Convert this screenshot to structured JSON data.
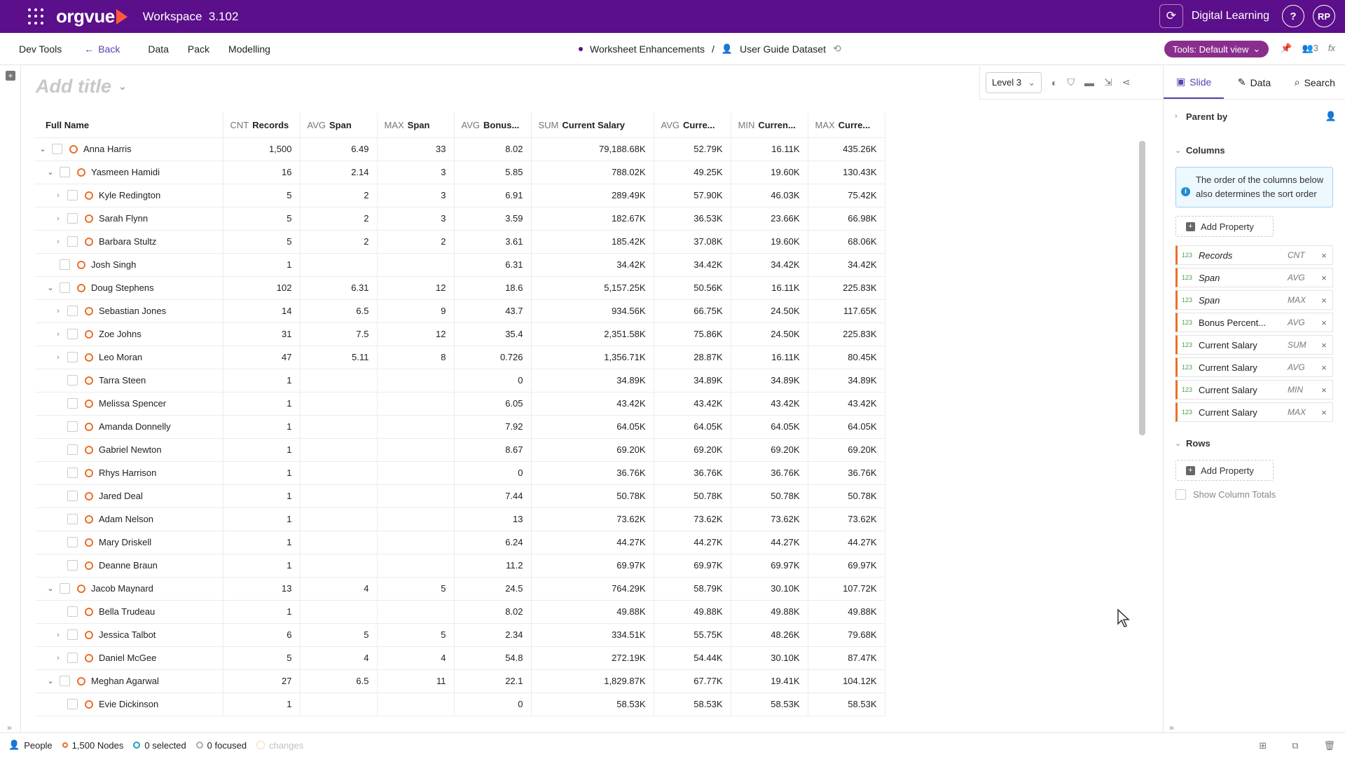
{
  "topbar": {
    "brand": "orgvue",
    "workspace": "Workspace",
    "version": "3.102",
    "org_name": "Digital Learning",
    "help": "?",
    "user_initials": "RP"
  },
  "nav": {
    "dev_tools": "Dev Tools",
    "back": "Back",
    "data": "Data",
    "pack": "Pack",
    "modelling": "Modelling",
    "crumb1": "Worksheet Enhancements",
    "sep": "/",
    "crumb2": "User Guide Dataset",
    "tools_view": "Tools: Default view",
    "pin_count": "3"
  },
  "canvas": {
    "title_placeholder": "Add title",
    "level": "Level 3"
  },
  "table": {
    "headers": [
      {
        "agg": "",
        "label": "Full Name"
      },
      {
        "agg": "CNT",
        "label": "Records"
      },
      {
        "agg": "AVG",
        "label": "Span"
      },
      {
        "agg": "MAX",
        "label": "Span"
      },
      {
        "agg": "AVG",
        "label": "Bonus..."
      },
      {
        "agg": "SUM",
        "label": "Current Salary"
      },
      {
        "agg": "AVG",
        "label": "Curre..."
      },
      {
        "agg": "MIN",
        "label": "Curren..."
      },
      {
        "agg": "MAX",
        "label": "Curre..."
      }
    ],
    "rows": [
      {
        "level": 0,
        "toggle": "expanded",
        "name": "Anna Harris",
        "vals": [
          "1,500",
          "6.49",
          "33",
          "8.02",
          "79,188.68K",
          "52.79K",
          "16.11K",
          "435.26K"
        ]
      },
      {
        "level": 1,
        "toggle": "expanded",
        "name": "Yasmeen Hamidi",
        "vals": [
          "16",
          "2.14",
          "3",
          "5.85",
          "788.02K",
          "49.25K",
          "19.60K",
          "130.43K"
        ]
      },
      {
        "level": 2,
        "toggle": "collapsed",
        "name": "Kyle Redington",
        "vals": [
          "5",
          "2",
          "3",
          "6.91",
          "289.49K",
          "57.90K",
          "46.03K",
          "75.42K"
        ]
      },
      {
        "level": 2,
        "toggle": "collapsed",
        "name": "Sarah Flynn",
        "vals": [
          "5",
          "2",
          "3",
          "3.59",
          "182.67K",
          "36.53K",
          "23.66K",
          "66.98K"
        ]
      },
      {
        "level": 2,
        "toggle": "collapsed",
        "name": "Barbara Stultz",
        "vals": [
          "5",
          "2",
          "2",
          "3.61",
          "185.42K",
          "37.08K",
          "19.60K",
          "68.06K"
        ]
      },
      {
        "level": 1,
        "toggle": "none",
        "name": "Josh Singh",
        "vals": [
          "1",
          "",
          "",
          "6.31",
          "34.42K",
          "34.42K",
          "34.42K",
          "34.42K"
        ]
      },
      {
        "level": 1,
        "toggle": "expanded",
        "name": "Doug Stephens",
        "vals": [
          "102",
          "6.31",
          "12",
          "18.6",
          "5,157.25K",
          "50.56K",
          "16.11K",
          "225.83K"
        ]
      },
      {
        "level": 2,
        "toggle": "collapsed",
        "name": "Sebastian Jones",
        "vals": [
          "14",
          "6.5",
          "9",
          "43.7",
          "934.56K",
          "66.75K",
          "24.50K",
          "117.65K"
        ]
      },
      {
        "level": 2,
        "toggle": "collapsed",
        "name": "Zoe Johns",
        "vals": [
          "31",
          "7.5",
          "12",
          "35.4",
          "2,351.58K",
          "75.86K",
          "24.50K",
          "225.83K"
        ]
      },
      {
        "level": 2,
        "toggle": "collapsed",
        "name": "Leo Moran",
        "vals": [
          "47",
          "5.11",
          "8",
          "0.726",
          "1,356.71K",
          "28.87K",
          "16.11K",
          "80.45K"
        ]
      },
      {
        "level": 2,
        "toggle": "none",
        "name": "Tarra Steen",
        "vals": [
          "1",
          "",
          "",
          "0",
          "34.89K",
          "34.89K",
          "34.89K",
          "34.89K"
        ]
      },
      {
        "level": 2,
        "toggle": "none",
        "name": "Melissa Spencer",
        "vals": [
          "1",
          "",
          "",
          "6.05",
          "43.42K",
          "43.42K",
          "43.42K",
          "43.42K"
        ]
      },
      {
        "level": 2,
        "toggle": "none",
        "name": "Amanda Donnelly",
        "vals": [
          "1",
          "",
          "",
          "7.92",
          "64.05K",
          "64.05K",
          "64.05K",
          "64.05K"
        ]
      },
      {
        "level": 2,
        "toggle": "none",
        "name": "Gabriel Newton",
        "vals": [
          "1",
          "",
          "",
          "8.67",
          "69.20K",
          "69.20K",
          "69.20K",
          "69.20K"
        ]
      },
      {
        "level": 2,
        "toggle": "none",
        "name": "Rhys Harrison",
        "vals": [
          "1",
          "",
          "",
          "0",
          "36.76K",
          "36.76K",
          "36.76K",
          "36.76K"
        ]
      },
      {
        "level": 2,
        "toggle": "none",
        "name": "Jared Deal",
        "vals": [
          "1",
          "",
          "",
          "7.44",
          "50.78K",
          "50.78K",
          "50.78K",
          "50.78K"
        ]
      },
      {
        "level": 2,
        "toggle": "none",
        "name": "Adam Nelson",
        "vals": [
          "1",
          "",
          "",
          "13",
          "73.62K",
          "73.62K",
          "73.62K",
          "73.62K"
        ]
      },
      {
        "level": 2,
        "toggle": "none",
        "name": "Mary Driskell",
        "vals": [
          "1",
          "",
          "",
          "6.24",
          "44.27K",
          "44.27K",
          "44.27K",
          "44.27K"
        ]
      },
      {
        "level": 2,
        "toggle": "none",
        "name": "Deanne Braun",
        "vals": [
          "1",
          "",
          "",
          "11.2",
          "69.97K",
          "69.97K",
          "69.97K",
          "69.97K"
        ]
      },
      {
        "level": 1,
        "toggle": "expanded",
        "name": "Jacob Maynard",
        "vals": [
          "13",
          "4",
          "5",
          "24.5",
          "764.29K",
          "58.79K",
          "30.10K",
          "107.72K"
        ]
      },
      {
        "level": 2,
        "toggle": "none",
        "name": "Bella Trudeau",
        "vals": [
          "1",
          "",
          "",
          "8.02",
          "49.88K",
          "49.88K",
          "49.88K",
          "49.88K"
        ]
      },
      {
        "level": 2,
        "toggle": "collapsed",
        "name": "Jessica Talbot",
        "vals": [
          "6",
          "5",
          "5",
          "2.34",
          "334.51K",
          "55.75K",
          "48.26K",
          "79.68K"
        ]
      },
      {
        "level": 2,
        "toggle": "collapsed",
        "name": "Daniel McGee",
        "vals": [
          "5",
          "4",
          "4",
          "54.8",
          "272.19K",
          "54.44K",
          "30.10K",
          "87.47K"
        ]
      },
      {
        "level": 1,
        "toggle": "expanded",
        "name": "Meghan Agarwal",
        "vals": [
          "27",
          "6.5",
          "11",
          "22.1",
          "1,829.87K",
          "67.77K",
          "19.41K",
          "104.12K"
        ]
      },
      {
        "level": 2,
        "toggle": "none",
        "name": "Evie Dickinson",
        "vals": [
          "1",
          "",
          "",
          "0",
          "58.53K",
          "58.53K",
          "58.53K",
          "58.53K"
        ]
      }
    ]
  },
  "panel": {
    "tabs": [
      "Slide",
      "Data",
      "Search"
    ],
    "parent_by": "Parent by",
    "columns": "Columns",
    "info": "The order of the columns below also determines the sort order",
    "add_property": "Add Property",
    "type_tag": "123",
    "column_items": [
      {
        "name": "Records",
        "agg": "CNT",
        "italic": true
      },
      {
        "name": "Span",
        "agg": "AVG",
        "italic": true
      },
      {
        "name": "Span",
        "agg": "MAX",
        "italic": true
      },
      {
        "name": "Bonus Percent...",
        "agg": "AVG",
        "italic": false
      },
      {
        "name": "Current Salary",
        "agg": "SUM",
        "italic": false
      },
      {
        "name": "Current Salary",
        "agg": "AVG",
        "italic": false
      },
      {
        "name": "Current Salary",
        "agg": "MIN",
        "italic": false
      },
      {
        "name": "Current Salary",
        "agg": "MAX",
        "italic": false
      }
    ],
    "rows": "Rows",
    "show_totals": "Show Column Totals"
  },
  "status": {
    "people": "People",
    "nodes": "1,500 Nodes",
    "selected": "0 selected",
    "focused": "0 focused",
    "changes": "changes"
  }
}
